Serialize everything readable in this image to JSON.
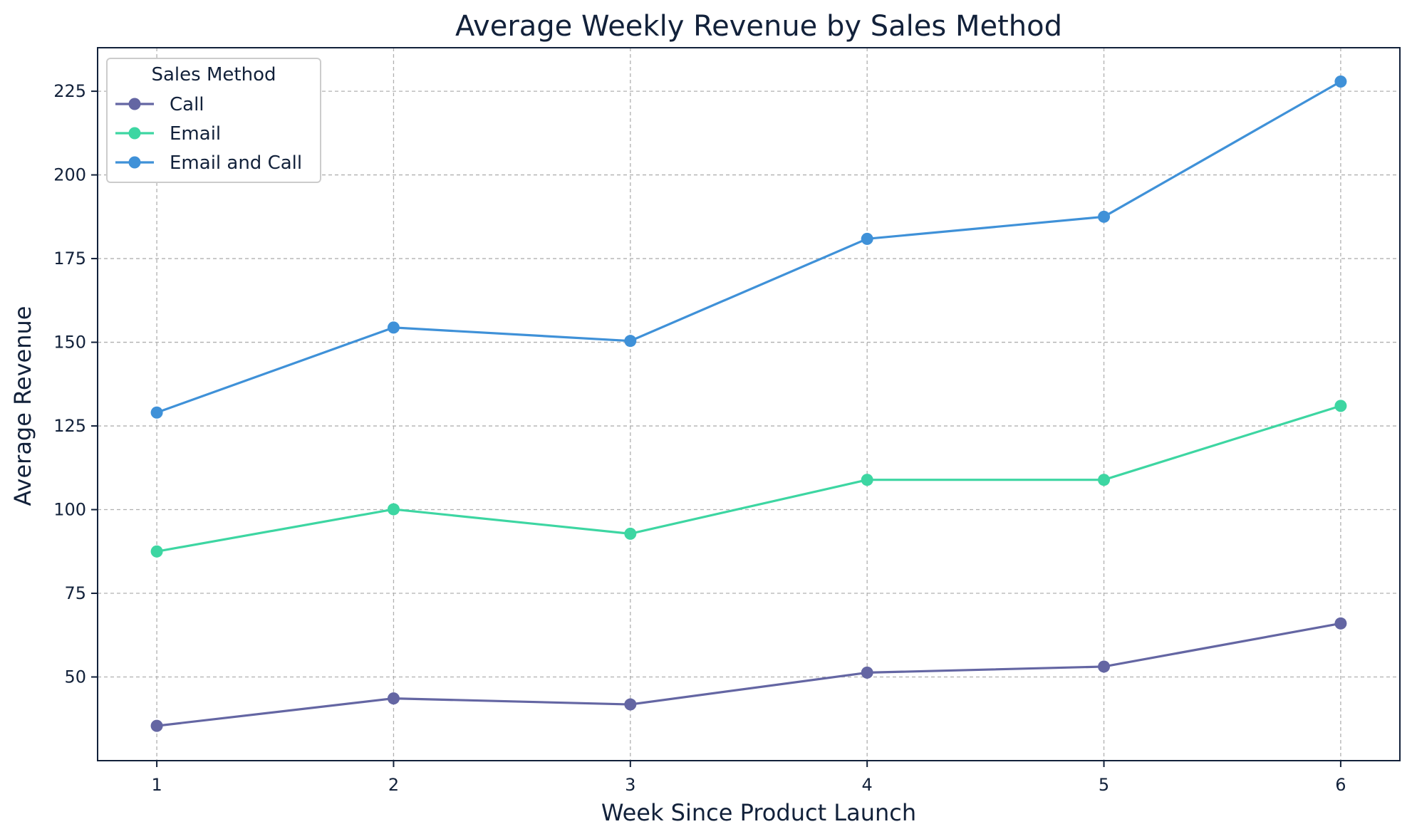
{
  "chart_data": {
    "type": "line",
    "title": "Average Weekly Revenue by Sales Method",
    "xlabel": "Week Since Product Launch",
    "ylabel": "Average Revenue",
    "x": [
      1,
      2,
      3,
      4,
      5,
      6
    ],
    "xticks": [
      "1",
      "2",
      "3",
      "4",
      "5",
      "6"
    ],
    "xlim": [
      0.75,
      6.25
    ],
    "yticks": [
      50,
      75,
      100,
      125,
      150,
      175,
      200,
      225
    ],
    "ylim": [
      25,
      238
    ],
    "grid": true,
    "legend": {
      "title": "Sales Method",
      "position": "top-left"
    },
    "series": [
      {
        "name": "Call",
        "color": "#6466a3",
        "values": [
          35.4,
          43.6,
          41.8,
          51.3,
          53.1,
          66.0
        ]
      },
      {
        "name": "Email",
        "color": "#3dd6a2",
        "values": [
          87.5,
          100.1,
          92.8,
          108.9,
          108.9,
          131.0
        ]
      },
      {
        "name": "Email and Call",
        "color": "#3f91d8",
        "values": [
          129.0,
          154.4,
          150.4,
          180.9,
          187.5,
          227.9
        ]
      }
    ]
  }
}
